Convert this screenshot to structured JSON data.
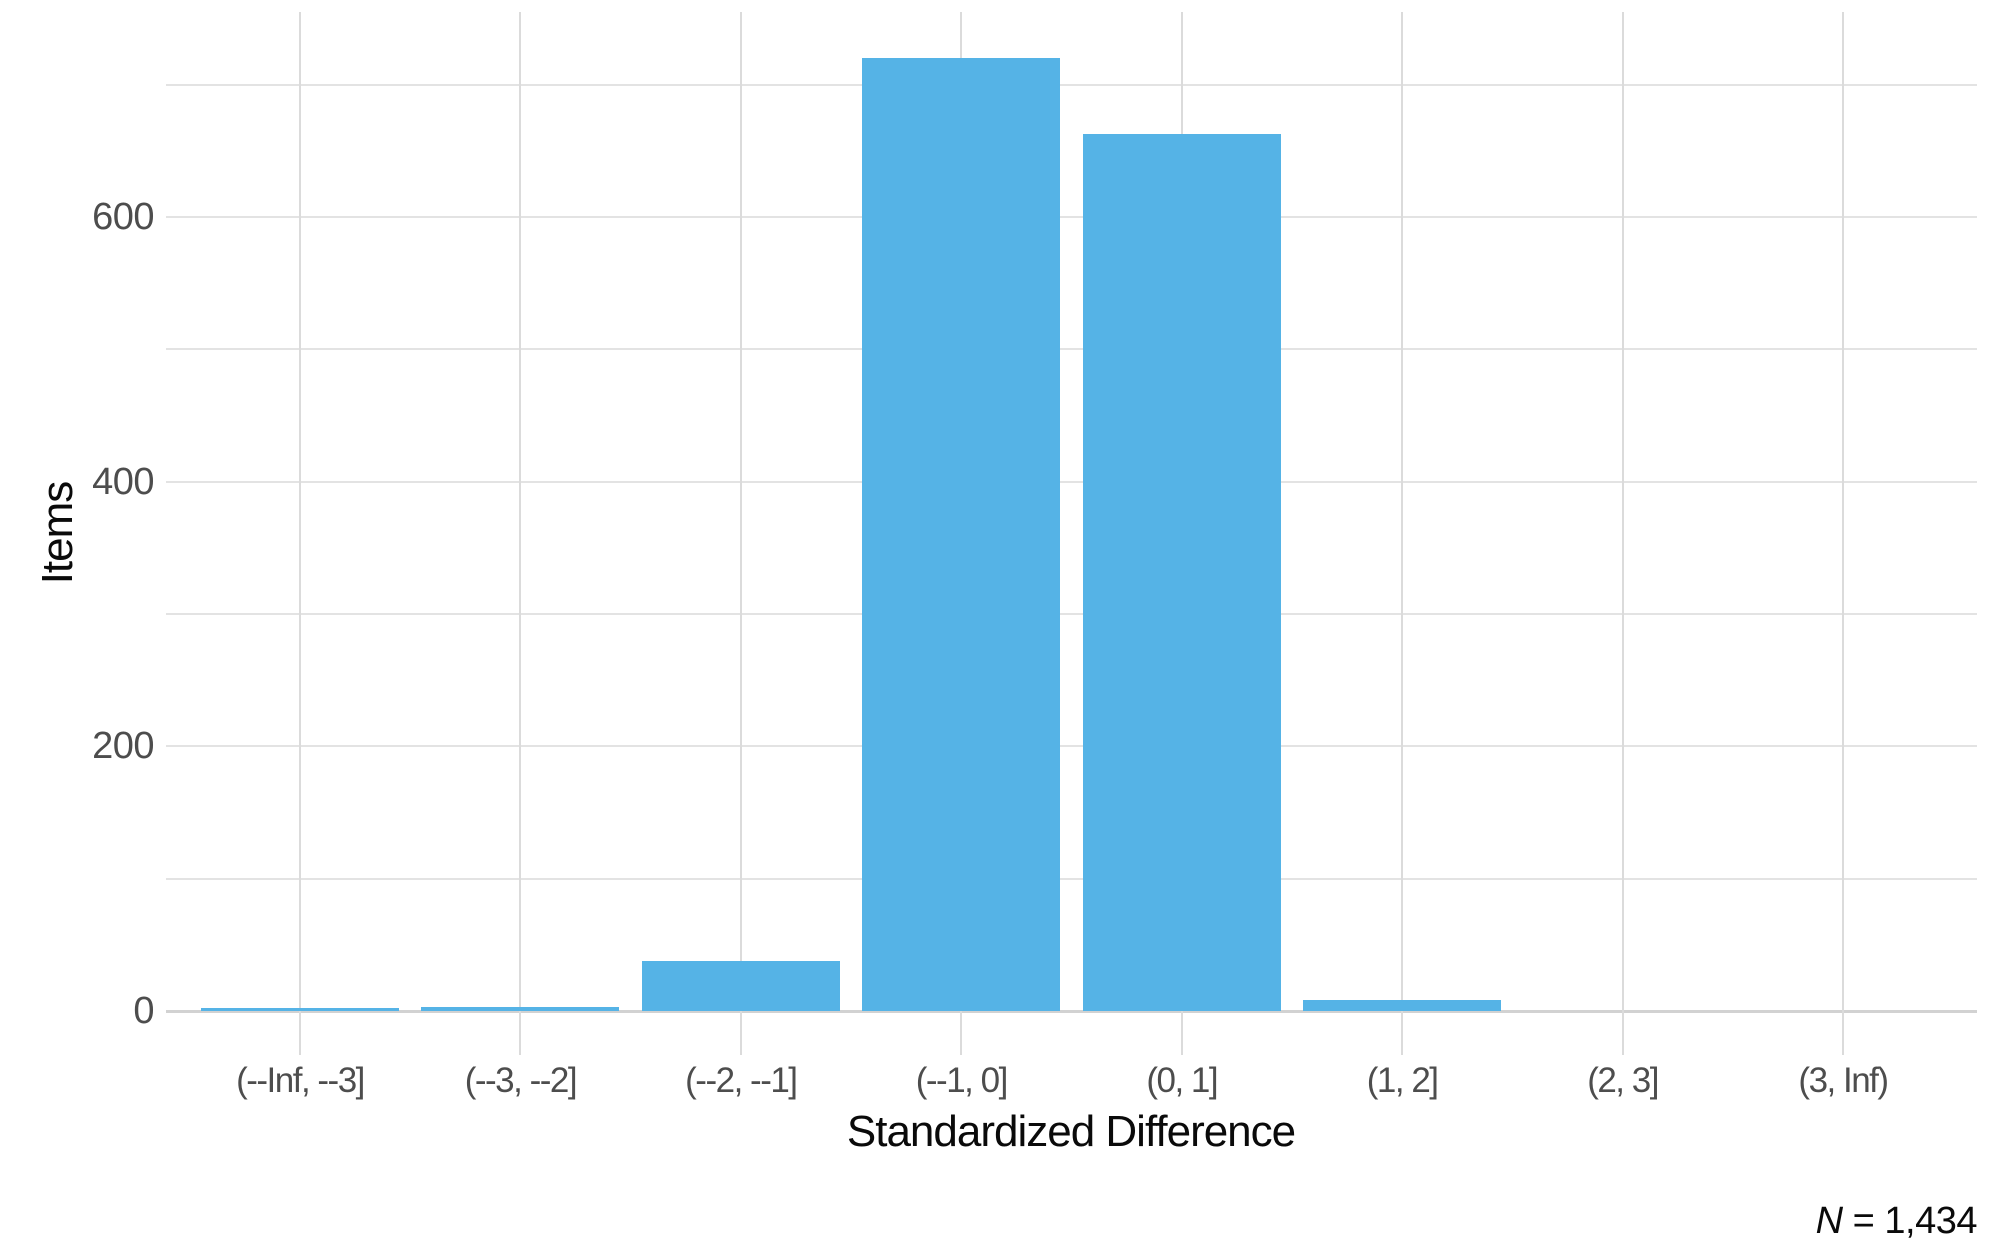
{
  "chart_data": {
    "type": "bar",
    "title": "",
    "categories": [
      "(--Inf, --3]",
      "(--3, --2]",
      "(--2, --1]",
      "(--1, 0]",
      "(0, 1]",
      "(1, 2]",
      "(2, 3]",
      "(3, Inf)"
    ],
    "values": [
      2,
      3,
      38,
      720,
      663,
      8,
      0,
      0
    ],
    "xlabel": "Standardized Difference",
    "ylabel": "Items",
    "ylim": [
      0,
      755
    ],
    "yticks": [
      0,
      200,
      400,
      600
    ],
    "minor_yticks": [
      100,
      300,
      500,
      700
    ],
    "grid": "on",
    "legend_position": "none",
    "bar_color": "#55b3e6",
    "gridline_color": "#e3e3e3",
    "axis_line_color": "#d2d2d2",
    "tick_label_color": "#4d4d4d",
    "caption": {
      "symbol": "N",
      "text": "= 1,434"
    }
  }
}
